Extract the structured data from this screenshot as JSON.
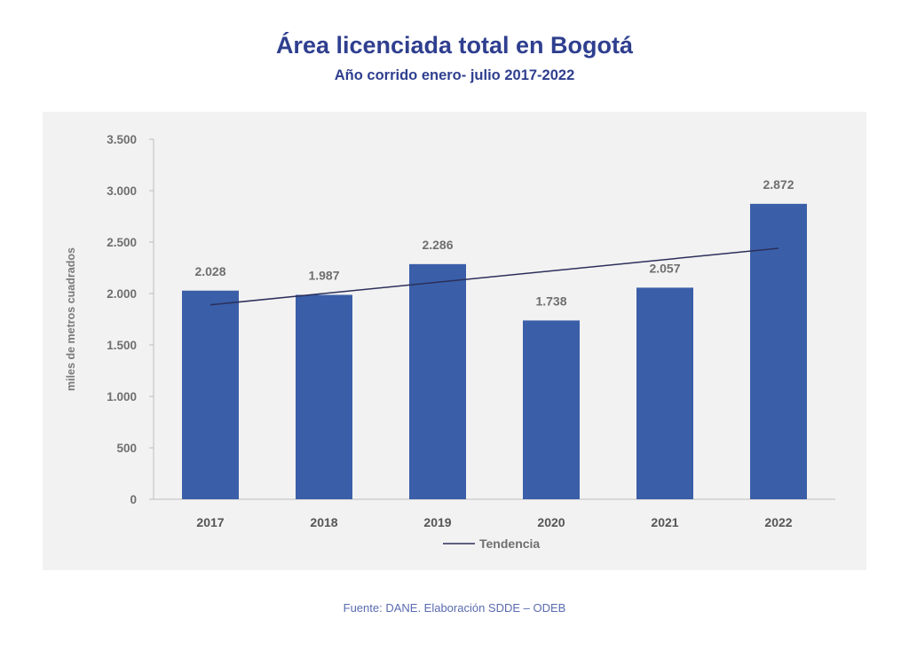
{
  "colors": {
    "title": "#2f3f8f",
    "bar": "#3a5fa8",
    "trend": "#2b2f5a",
    "panel": "#f2f2f2",
    "source": "#5a6bb0"
  },
  "chart_data": {
    "type": "bar",
    "title": "Área licenciada total en Bogotá",
    "subtitle": "Año corrido enero- julio 2017-2022",
    "xlabel": "",
    "ylabel": "miles de metros cuadrados",
    "categories": [
      "2017",
      "2018",
      "2019",
      "2020",
      "2021",
      "2022"
    ],
    "values": [
      2028,
      1987,
      2286,
      1738,
      2057,
      2872
    ],
    "data_labels": [
      "2.028",
      "1.987",
      "2.286",
      "1.738",
      "2.057",
      "2.872"
    ],
    "ylim": [
      0,
      3500
    ],
    "yticks": [
      0,
      500,
      1000,
      1500,
      2000,
      2500,
      3000,
      3500
    ],
    "ytick_labels": [
      "0",
      "500",
      "1.000",
      "1.500",
      "2.000",
      "2.500",
      "3.000",
      "3.500"
    ],
    "trend": {
      "name": "Tendencia",
      "start": 1890,
      "end": 2440
    },
    "legend": [
      "Tendencia"
    ],
    "legend_position": "bottom"
  },
  "source": "Fuente: DANE. Elaboración SDDE – ODEB"
}
